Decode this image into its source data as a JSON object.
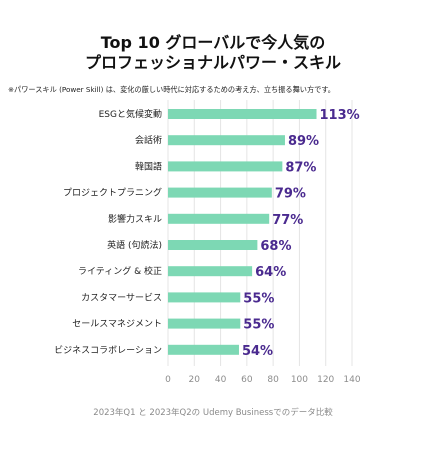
{
  "title_line1": "Top 10 グローバルで今人気の",
  "title_line2": "プロフェッショナルパワー・スキル",
  "note": "※パワースキル (Power Skill) は、変化の厳しい時代に対応するための考え方、立ち振る舞い方です。",
  "source": "2023年Q1 と 2023年Q2の Udemy Businessでのデータ比較",
  "colors": {
    "bar": "#7dd8b4",
    "value": "#4a2a8f",
    "grid": "#e4e4e4"
  },
  "chart_data": {
    "type": "bar",
    "orientation": "horizontal",
    "categories": [
      "ESGと気候変動",
      "会話術",
      "韓国語",
      "プロジェクトプラニング",
      "影響力スキル",
      "英語 (句読法)",
      "ライティング & 校正",
      "カスタマーサービス",
      "セールスマネジメント",
      "ビジネスコラボレーション"
    ],
    "values": [
      113,
      89,
      87,
      79,
      77,
      68,
      64,
      55,
      55,
      54
    ],
    "value_labels": [
      "113%",
      "89%",
      "87%",
      "79%",
      "77%",
      "68%",
      "64%",
      "55%",
      "55%",
      "54%"
    ],
    "xlim": [
      0,
      140
    ],
    "xticks": [
      "0",
      "20",
      "40",
      "60",
      "80",
      "100",
      "120",
      "140"
    ],
    "grid": true
  }
}
